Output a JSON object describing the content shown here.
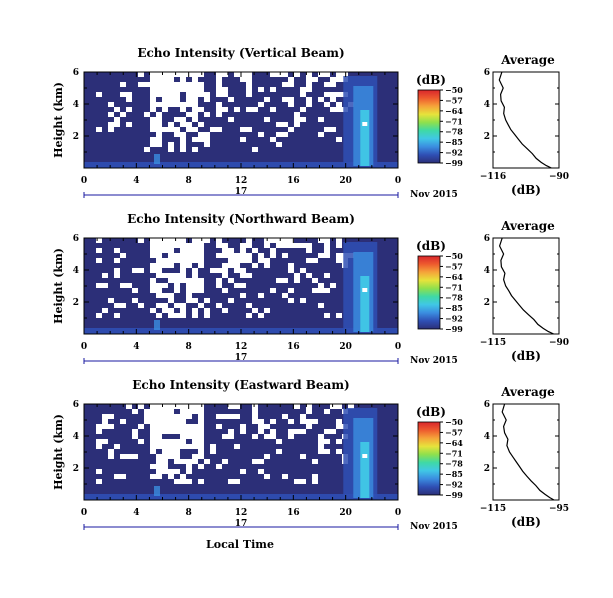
{
  "figure": {
    "xlabel": "Local Time",
    "date_label": "Nov 2015",
    "day_label": "17",
    "colorbar_unit": "(dB)",
    "colorbar_ticks": [
      "-50",
      "-57",
      "-64",
      "-71",
      "-78",
      "-85",
      "-92",
      "-99"
    ],
    "colorbar_colors": [
      "#2c2f78",
      "#2f4fb4",
      "#3b8de0",
      "#40c7e6",
      "#3fd9a6",
      "#8fe04d",
      "#e6e33b",
      "#f5a43a",
      "#ee5a2e",
      "#d9262c"
    ]
  },
  "chart_data": [
    {
      "type": "heatmap",
      "title": "Echo Intensity (Vertical Beam)",
      "ylabel": "Height (km)",
      "x_ticks": [
        "0",
        "4",
        "8",
        "12",
        "16",
        "20",
        "0"
      ],
      "y_ticks": [
        "6",
        "4",
        "2"
      ],
      "xlim": [
        0,
        24
      ],
      "ylim": [
        0,
        6
      ],
      "clim": [
        -99,
        -50
      ]
    },
    {
      "type": "line",
      "title": "Average",
      "xlabel": "(dB)",
      "x_ticks": [
        "-116",
        "-90"
      ],
      "y_ticks": [
        "6",
        "4",
        "2"
      ],
      "xlim": [
        -116,
        -90
      ],
      "ylim": [
        0,
        6
      ],
      "x": [
        -112.5,
        -113.5,
        -112,
        -113,
        -112.8,
        -111.5,
        -111.8,
        -111,
        -110,
        -109,
        -107.5,
        -106,
        -104.5,
        -102.5,
        -100.5,
        -99,
        -97,
        -95,
        -93
      ],
      "y": [
        6.0,
        5.5,
        5.0,
        4.6,
        4.2,
        3.8,
        3.4,
        3.0,
        2.7,
        2.4,
        2.1,
        1.8,
        1.5,
        1.2,
        0.9,
        0.6,
        0.35,
        0.15,
        0.0
      ]
    },
    {
      "type": "heatmap",
      "title": "Echo Intensity (Northward Beam)",
      "ylabel": "Height (km)",
      "x_ticks": [
        "0",
        "4",
        "8",
        "12",
        "16",
        "20",
        "0"
      ],
      "y_ticks": [
        "6",
        "4",
        "2"
      ],
      "xlim": [
        0,
        24
      ],
      "ylim": [
        0,
        6
      ],
      "clim": [
        -99,
        -50
      ]
    },
    {
      "type": "line",
      "title": "Average",
      "xlabel": "(dB)",
      "x_ticks": [
        "-115",
        "-90"
      ],
      "y_ticks": [
        "6",
        "4",
        "2"
      ],
      "xlim": [
        -115,
        -90
      ],
      "ylim": [
        0,
        6
      ],
      "x": [
        -111.5,
        -112.5,
        -111,
        -112,
        -111.8,
        -110.5,
        -111,
        -110.2,
        -109,
        -108,
        -106.5,
        -105,
        -103.5,
        -101.5,
        -99.5,
        -98,
        -96,
        -94,
        -92
      ],
      "y": [
        6.0,
        5.5,
        5.0,
        4.6,
        4.2,
        3.8,
        3.4,
        3.0,
        2.7,
        2.4,
        2.1,
        1.8,
        1.5,
        1.2,
        0.9,
        0.6,
        0.35,
        0.15,
        0.0
      ]
    },
    {
      "type": "heatmap",
      "title": "Echo Intensity (Eastward Beam)",
      "ylabel": "Height (km)",
      "x_ticks": [
        "0",
        "4",
        "8",
        "12",
        "16",
        "20",
        "0"
      ],
      "y_ticks": [
        "6",
        "4",
        "2"
      ],
      "xlim": [
        0,
        24
      ],
      "ylim": [
        0,
        6
      ],
      "clim": [
        -99,
        -50
      ]
    },
    {
      "type": "line",
      "title": "Average",
      "xlabel": "(dB)",
      "x_ticks": [
        "-115",
        "-95"
      ],
      "y_ticks": [
        "6",
        "4",
        "2"
      ],
      "xlim": [
        -115,
        -95
      ],
      "ylim": [
        0,
        6
      ],
      "x": [
        -111.5,
        -112.2,
        -111,
        -111.8,
        -111.5,
        -110.5,
        -110.8,
        -110,
        -109,
        -108,
        -107,
        -106,
        -104.8,
        -103.5,
        -102,
        -100.8,
        -99.2,
        -97.8,
        -96.5
      ],
      "y": [
        6.0,
        5.5,
        5.0,
        4.6,
        4.2,
        3.8,
        3.4,
        3.0,
        2.7,
        2.4,
        2.1,
        1.8,
        1.5,
        1.2,
        0.9,
        0.6,
        0.35,
        0.15,
        0.0
      ]
    }
  ]
}
